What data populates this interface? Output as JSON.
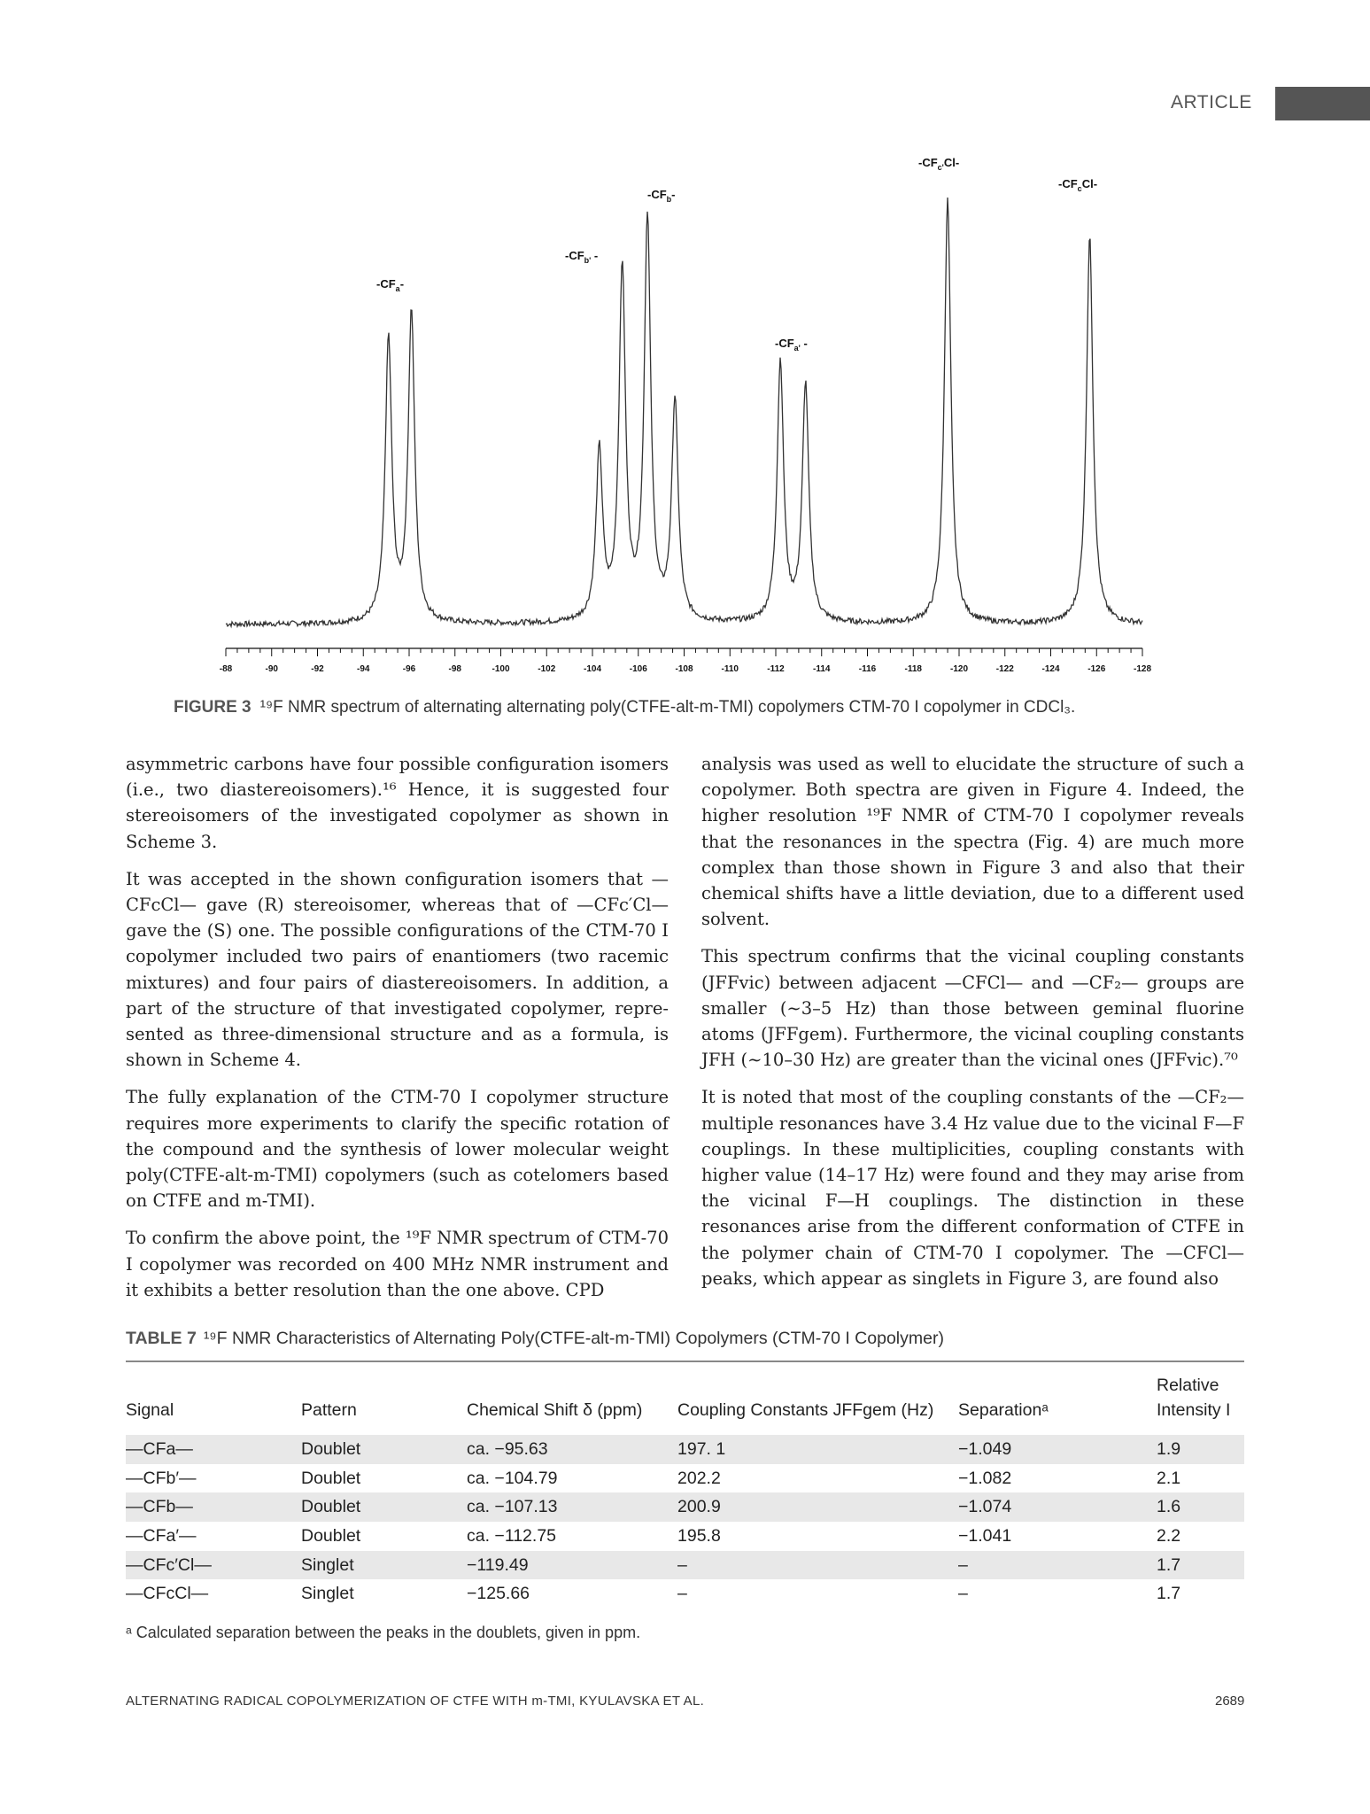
{
  "header": {
    "label": "ARTICLE"
  },
  "figure": {
    "caption_lead": "FIGURE 3",
    "caption_text": "¹⁹F NMR spectrum of alternating alternating poly(CTFE-alt-m-TMI) copolymers CTM-70 I copolymer in CDCl₃."
  },
  "chart_data": {
    "type": "line",
    "title": "",
    "xlabel": "",
    "ylabel": "",
    "xlim": [
      -88,
      -128
    ],
    "x_axis_reversed": true,
    "grid": false,
    "x_tick_labels": [
      "-88",
      "-90",
      "-92",
      "-94",
      "-96",
      "-98",
      "-100",
      "-102",
      "-104",
      "-106",
      "-108",
      "-110",
      "-112",
      "-114",
      "-116",
      "-118",
      "-120",
      "-122",
      "-124",
      "-126",
      "-128"
    ],
    "peaks": [
      {
        "position_ppm": -95.1,
        "relative_height": 0.62
      },
      {
        "position_ppm": -96.1,
        "relative_height": 0.68
      },
      {
        "position_ppm": -104.3,
        "relative_height": 0.37
      },
      {
        "position_ppm": -105.3,
        "relative_height": 0.77
      },
      {
        "position_ppm": -106.4,
        "relative_height": 0.88
      },
      {
        "position_ppm": -107.6,
        "relative_height": 0.48
      },
      {
        "position_ppm": -112.2,
        "relative_height": 0.57
      },
      {
        "position_ppm": -113.3,
        "relative_height": 0.52
      },
      {
        "position_ppm": -119.5,
        "relative_height": 0.93
      },
      {
        "position_ppm": -125.7,
        "relative_height": 0.85
      }
    ],
    "annotations": [
      "-CFa-",
      "-CFb'-",
      "-CFb-",
      "-CFa'-",
      "-CFc'Cl-",
      "-CFcCl-"
    ]
  },
  "left_column": [
    "asymmetric carbons have four possible configuration isomers (i.e., two diastereoisomers).¹⁶ Hence, it is suggested four stereoisomers of the investigated copolymer as shown in Scheme 3.",
    "It was accepted in the shown configuration isomers that —CFcCl— gave (R) stereoisomer, whereas that of —CFc′Cl— gave the (S) one. The possible configurations of the CTM-70 I copolymer included two pairs of enantiomers (two racemic mixtures) and four pairs of diastereoisomers. In addition, a part of the structure of that investigated copolymer, repre-sented as three-dimensional structure and as a formula, is shown in Scheme 4.",
    "The fully explanation of the CTM-70 I copolymer structure requires more experiments to clarify the specific rotation of the compound and the synthesis of lower molecular weight poly(CTFE-alt-m-TMI) copolymers (such as cotelomers based on CTFE and m-TMI).",
    "To confirm the above point, the ¹⁹F NMR spectrum of CTM-70 I copolymer was recorded on 400 MHz NMR instrument and it exhibits a better resolution than the one above. CPD"
  ],
  "right_column": [
    "analysis was used as well to elucidate the structure of such a copolymer. Both spectra are given in Figure 4. Indeed, the higher resolution ¹⁹F NMR of CTM-70 I copolymer reveals that the resonances in the spectra (Fig. 4) are much more complex than those shown in Figure 3 and also that their chemical shifts have a little deviation, due to a different used solvent.",
    "This spectrum confirms that the vicinal coupling constants (JFFvic) between adjacent —CFCl— and —CF₂— groups are smaller (∼3–5 Hz) than those between geminal fluorine atoms (JFFgem). Furthermore, the vicinal coupling constants JFH (∼10–30 Hz) are greater than the vicinal ones (JFFvic).⁷⁰",
    "It is noted that most of the coupling constants of the —CF₂— multiple resonances have 3.4 Hz value due to the vicinal F—F couplings. In these multiplicities, coupling constants with higher value (14–17 Hz) were found and they may arise from the vicinal F—H couplings. The distinction in these resonances arise from the different conformation of CTFE in the polymer chain of CTM-70 I copolymer. The —CFCl— peaks, which appear as singlets in Figure 3, are found also"
  ],
  "table": {
    "caption_lead": "TABLE 7",
    "caption_text": "¹⁹F NMR Characteristics of Alternating Poly(CTFE-alt-m-TMI) Copolymers (CTM-70 I Copolymer)",
    "headers": [
      "Signal",
      "Pattern",
      "Chemical Shift δ (ppm)",
      "Coupling Constants JFFgem (Hz)",
      "Separationᵃ",
      "Relative Intensity I"
    ],
    "rows": [
      [
        "—CFa—",
        "Doublet",
        "ca. −95.63",
        "197. 1",
        "−1.049",
        "1.9"
      ],
      [
        "—CFb′—",
        "Doublet",
        "ca. −104.79",
        "202.2",
        "−1.082",
        "2.1"
      ],
      [
        "—CFb—",
        "Doublet",
        "ca. −107.13",
        "200.9",
        "−1.074",
        "1.6"
      ],
      [
        "—CFa′—",
        "Doublet",
        "ca. −112.75",
        "195.8",
        "−1.041",
        "2.2"
      ],
      [
        "—CFc′Cl—",
        "Singlet",
        "−119.49",
        "–",
        "–",
        "1.7"
      ],
      [
        "—CFcCl—",
        "Singlet",
        "−125.66",
        "–",
        "–",
        "1.7"
      ]
    ],
    "note": "ᵃ Calculated separation between the peaks in the doublets, given in ppm."
  },
  "footer": {
    "left": "ALTERNATING RADICAL COPOLYMERIZATION OF CTFE WITH m-TMI, KYULAVSKA ET AL.",
    "right": "2689"
  }
}
